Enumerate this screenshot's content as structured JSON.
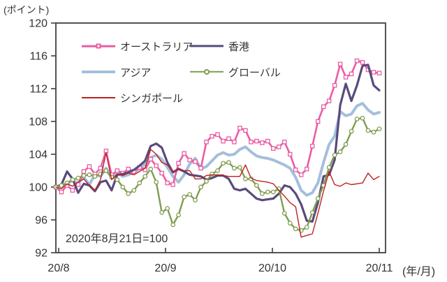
{
  "unit_label": "(ポイント)",
  "axis_suffix": "(年/月)",
  "annotation": "2020年8月21日=100",
  "colors": {
    "australia": "#ea5ca4",
    "hongkong": "#594a7d",
    "asia": "#a4bfdc",
    "global": "#7f9d4f",
    "singapore": "#bf2121",
    "axis": "#404040",
    "text": "#333333"
  },
  "chart_data": {
    "type": "line",
    "title": "",
    "xlabel": "(年/月)",
    "ylabel": "(ポイント)",
    "ylim": [
      92,
      120
    ],
    "y_ticks": [
      92,
      96,
      100,
      104,
      108,
      112,
      116,
      120
    ],
    "x_ticks": [
      "20/8",
      "20/9",
      "20/10",
      "20/11"
    ],
    "grid": false,
    "legend_position": "top-inside",
    "note": "2020年8月21日=100",
    "z_order": [
      "asia",
      "australia",
      "hongkong",
      "global",
      "singapore"
    ],
    "series": [
      {
        "id": "australia",
        "name": "オーストラリア",
        "color": "#ea5ca4",
        "line_width": 2.6,
        "marker": "square",
        "values": [
          100,
          99.4,
          100.2,
          99.6,
          100.3,
          101.9,
          102.5,
          101.6,
          102.3,
          104.4,
          101.5,
          102,
          101.7,
          102.2,
          101.9,
          102.4,
          102.1,
          103.4,
          102.6,
          101.7,
          100.5,
          100.3,
          102.9,
          104.1,
          103.3,
          103.1,
          102.3,
          105.5,
          106.2,
          106.4,
          105.6,
          105.9,
          105.5,
          107.2,
          106.9,
          105.5,
          105.6,
          105.4,
          105.6,
          104.7,
          104.9,
          105.5,
          104,
          102.1,
          101.5,
          102.2,
          105,
          108,
          109.8,
          110.5,
          112.4,
          115,
          113.4,
          113.8,
          115.4,
          115.2,
          114.3,
          114,
          113.9
        ]
      },
      {
        "id": "hongkong",
        "name": "香港",
        "color": "#594a7d",
        "line_width": 3.2,
        "marker": "none",
        "values": [
          100,
          100.3,
          101.9,
          101,
          99.3,
          100.4,
          100.2,
          99.5,
          100.6,
          100.8,
          99.6,
          101.5,
          101.6,
          101.8,
          102.1,
          102.6,
          103.2,
          105,
          105.3,
          104.8,
          103,
          101.8,
          102.2,
          101.9,
          101.5,
          101.4,
          101.3,
          100.9,
          101.1,
          101.4,
          101.4,
          101,
          99.8,
          99.6,
          99.8,
          99.2,
          98.6,
          98.4,
          98.5,
          98.6,
          99.2,
          100.2,
          100,
          99.2,
          97.9,
          95.9,
          95.8,
          98.1,
          101.3,
          101.5,
          103.3,
          110,
          112.6,
          110.5,
          112.4,
          114.8,
          114.9,
          112.4,
          111.8
        ]
      },
      {
        "id": "asia",
        "name": "アジア",
        "color": "#a4bfdc",
        "line_width": 4,
        "marker": "none",
        "values": [
          100,
          100.1,
          100.4,
          100.8,
          100.5,
          101.2,
          100.3,
          101.5,
          101.3,
          102.3,
          101.1,
          101.7,
          101.3,
          101.5,
          101.8,
          102.2,
          102.8,
          103.6,
          103.9,
          103.4,
          102.4,
          101.3,
          100.6,
          101.5,
          102.8,
          103.5,
          102.2,
          102.5,
          103.2,
          103.9,
          104.2,
          103.9,
          104,
          104.6,
          104.9,
          104.3,
          103.8,
          103.6,
          103.5,
          103.3,
          103,
          102.7,
          102.3,
          101.2,
          99.6,
          99,
          99.3,
          100.5,
          103,
          105.2,
          106.2,
          109.2,
          108.7,
          108.9,
          109.9,
          110.2,
          109.4,
          108.9,
          109.1
        ]
      },
      {
        "id": "global",
        "name": "グローバル",
        "color": "#7f9d4f",
        "line_width": 2.4,
        "marker": "circle",
        "values": [
          100,
          100.2,
          100.5,
          100.9,
          101.1,
          101.4,
          101.5,
          101.3,
          101.6,
          102,
          101.2,
          100.9,
          100,
          99.2,
          99.6,
          100.5,
          101.3,
          102.2,
          100.6,
          96.9,
          97.4,
          95.4,
          96.6,
          98.8,
          99.1,
          98.4,
          100,
          100.7,
          101.6,
          102,
          102.9,
          103,
          102.3,
          102.4,
          101,
          101,
          100.2,
          99.2,
          99.4,
          99.4,
          99.8,
          96.8,
          95.6,
          94.9,
          94.7,
          95.1,
          96.9,
          98.6,
          100.2,
          102.4,
          103.9,
          104.3,
          105.2,
          106.8,
          108.3,
          108.4,
          106.9,
          106.7,
          107.1
        ]
      },
      {
        "id": "singapore",
        "name": "シンガポール",
        "color": "#bf2121",
        "line_width": 1.4,
        "marker": "none",
        "values": [
          100,
          99.8,
          100.4,
          100.1,
          100.6,
          101,
          100.2,
          99.6,
          100.9,
          104.2,
          100.9,
          101.6,
          101.4,
          101.7,
          101.5,
          101.9,
          102.3,
          104.6,
          104,
          103,
          102.7,
          101.8,
          102.3,
          102,
          102,
          101,
          101,
          101.4,
          101.5,
          101.5,
          101.4,
          101.3,
          101.3,
          101.3,
          102.7,
          101.1,
          100.8,
          100.7,
          100.6,
          100.4,
          99.6,
          98.9,
          98.1,
          97.6,
          93.9,
          94.1,
          94.3,
          96.8,
          99.5,
          101.9,
          100.3,
          100.1,
          100.5,
          100.3,
          100.4,
          100.5,
          101.7,
          100.9,
          101.3
        ]
      }
    ]
  },
  "legend": {
    "items": [
      {
        "series": 0,
        "label": "オーストラリア"
      },
      {
        "series": 1,
        "label": "香港"
      },
      {
        "series": 2,
        "label": "アジア"
      },
      {
        "series": 3,
        "label": "グローバル"
      },
      {
        "series": 4,
        "label": "シンガポール"
      }
    ]
  }
}
